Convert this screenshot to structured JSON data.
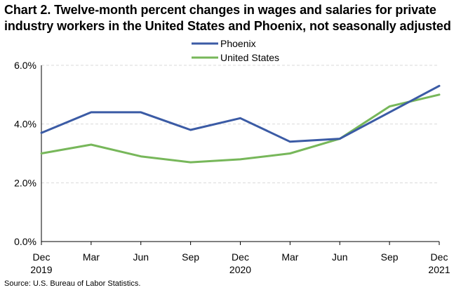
{
  "title": "Chart 2. Twelve-month percent changes in wages and salaries for private industry workers in the United States and Phoenix, not seasonally adjusted",
  "source": "Source: U.S. Bureau of Labor Statistics.",
  "chart_data": {
    "type": "line",
    "title": "Chart 2. Twelve-month percent changes in wages and salaries for private industry workers in the United States and Phoenix, not seasonally adjusted",
    "xlabel": "",
    "ylabel": "",
    "ylim": [
      0,
      6
    ],
    "yticks": [
      {
        "value": 0,
        "label": "0.0%"
      },
      {
        "value": 2,
        "label": "2.0%"
      },
      {
        "value": 4,
        "label": "4.0%"
      },
      {
        "value": 6,
        "label": "6.0%"
      }
    ],
    "categories": [
      "Dec 2019",
      "Mar",
      "Jun",
      "Sep",
      "Dec 2020",
      "Mar",
      "Jun",
      "Sep",
      "Dec 2021"
    ],
    "x_tick_labels": [
      {
        "month": "Dec",
        "year": "2019"
      },
      {
        "month": "Mar",
        "year": ""
      },
      {
        "month": "Jun",
        "year": ""
      },
      {
        "month": "Sep",
        "year": ""
      },
      {
        "month": "Dec",
        "year": "2020"
      },
      {
        "month": "Mar",
        "year": ""
      },
      {
        "month": "Jun",
        "year": ""
      },
      {
        "month": "Sep",
        "year": ""
      },
      {
        "month": "Dec",
        "year": "2021"
      }
    ],
    "grid": "horizontal dashed",
    "legend_position": "top-center",
    "series": [
      {
        "name": "Phoenix",
        "color": "#3b5ba5",
        "values": [
          3.7,
          4.4,
          4.4,
          3.8,
          4.2,
          3.4,
          3.5,
          4.4,
          5.3
        ]
      },
      {
        "name": "United States",
        "color": "#77b75a",
        "values": [
          3.0,
          3.3,
          2.9,
          2.7,
          2.8,
          3.0,
          3.5,
          4.6,
          5.0
        ]
      }
    ]
  }
}
